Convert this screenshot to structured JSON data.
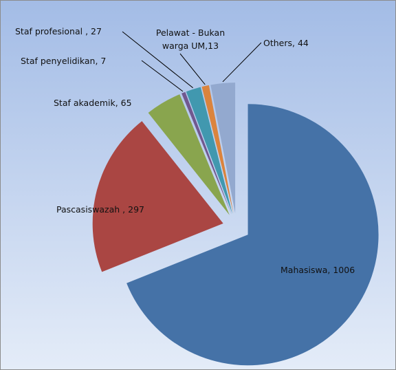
{
  "chart_data": {
    "type": "pie",
    "values": [
      1006,
      297,
      65,
      7,
      27,
      13,
      44
    ],
    "value_labels": [
      "Mahasiswa, 1006",
      "Pascasiswazah , 297",
      "Staf akademik, 65",
      "Staf penyelidikan, 7",
      "Staf profesional , 27",
      "Pelawat - Bukan warga UM,13",
      "Others, 44"
    ],
    "colors": [
      "#4572a7",
      "#aa4643",
      "#89a54e",
      "#71588f",
      "#4198af",
      "#db843d",
      "#93a9cf"
    ],
    "start_angle": 0,
    "direction": "clockwise",
    "exploded": true
  }
}
